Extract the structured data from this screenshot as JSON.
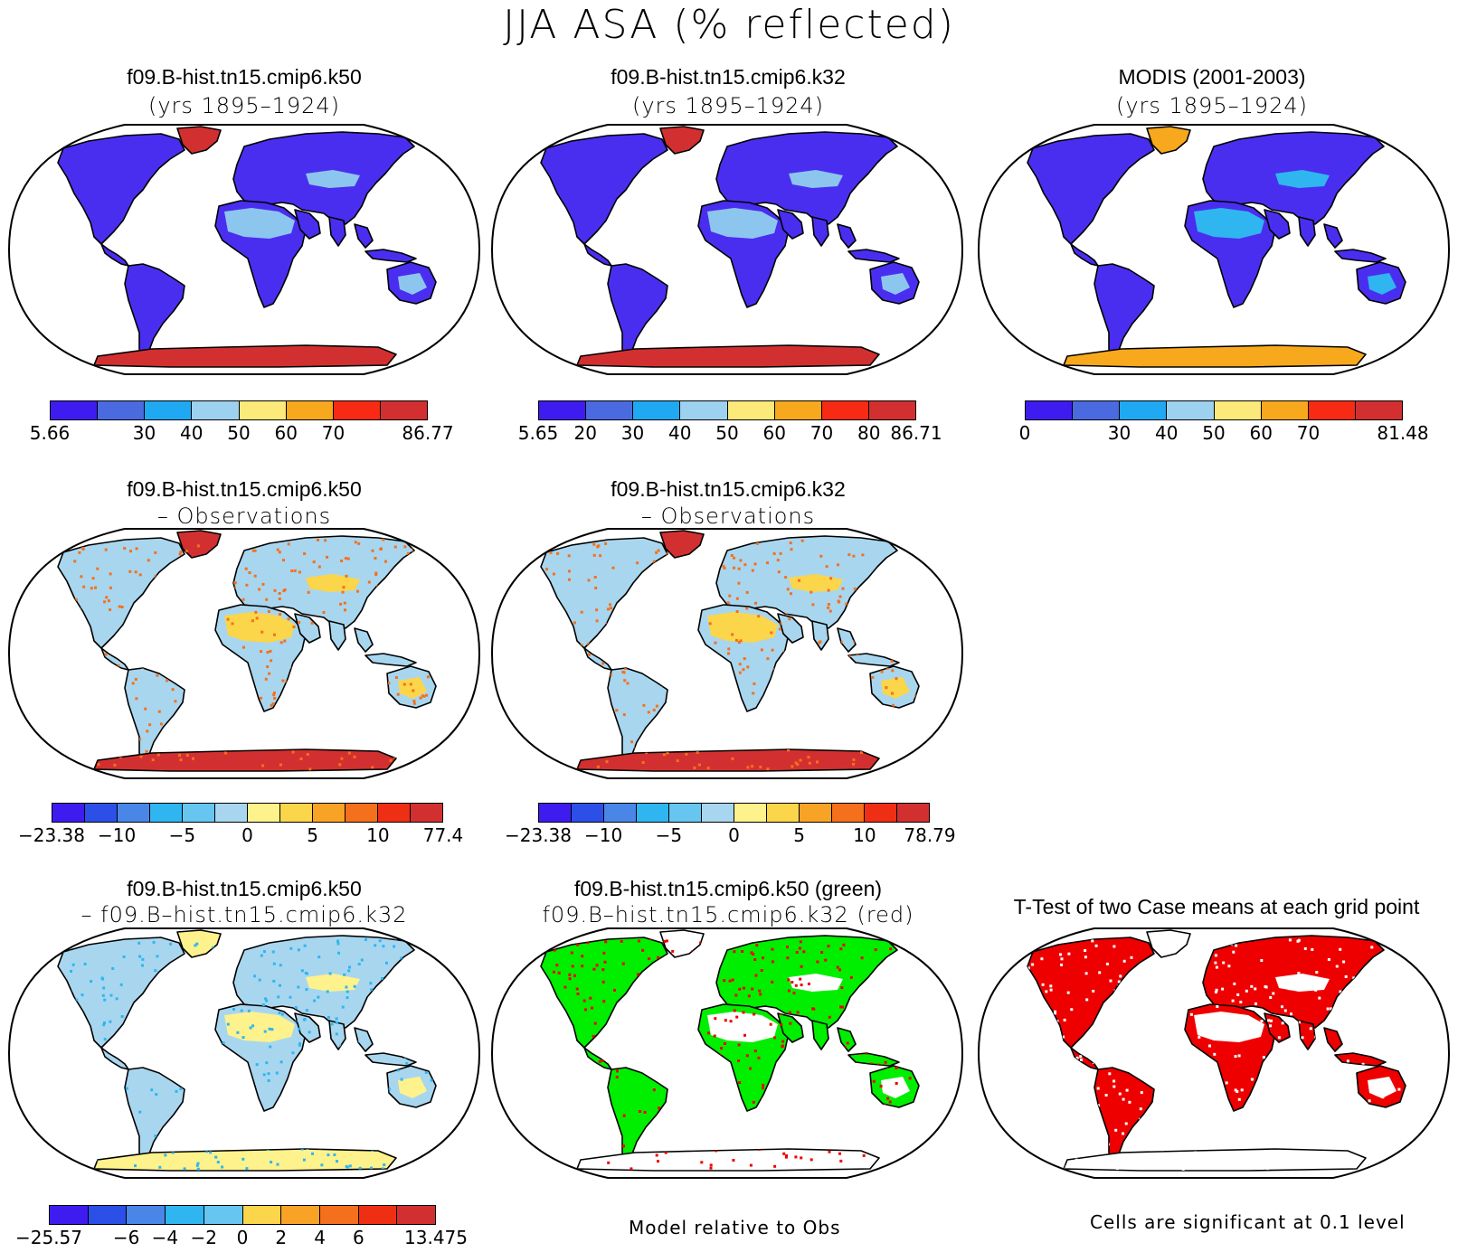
{
  "figure_title": "JJA ASA (% reflected)",
  "colors": {
    "ocean": "#ffffff",
    "coast": "#000000",
    "abs_scale": [
      "#3e1cf0",
      "#4a6be0",
      "#1fa9f2",
      "#9dd1f0",
      "#fbe97a",
      "#f8a81c",
      "#f72a14",
      "#d23030"
    ],
    "diff_scale": [
      "#3e1cf0",
      "#2c4fe8",
      "#4a86e8",
      "#2fb6f0",
      "#66c6f0",
      "#a8d6ef",
      "#fdf28c",
      "#fbd54a",
      "#f9a326",
      "#f5701c",
      "#ef2f14",
      "#d23030"
    ],
    "sig_green": "#00ee00",
    "sig_red": "#ee0000"
  },
  "panels": [
    {
      "id": "k50",
      "title": "f09.B-hist.tn15.cmip6.k50",
      "subtitle": "(yrs 1895–1924)",
      "land_color": "#4a2ef0",
      "ice_color": "#d23030",
      "desert_color": "#8cc6ee",
      "dots": ""
    },
    {
      "id": "k32",
      "title": "f09.B-hist.tn15.cmip6.k32",
      "subtitle": "(yrs 1895–1924)",
      "land_color": "#4a2ef0",
      "ice_color": "#d23030",
      "desert_color": "#8cc6ee",
      "dots": ""
    },
    {
      "id": "modis",
      "title": "MODIS (2001-2003)",
      "subtitle": "(yrs 1895–1924)",
      "land_color": "#4a2ef0",
      "ice_color": "#f8a81c",
      "desert_color": "#2fb6f0",
      "dots": ""
    },
    {
      "id": "k50obs",
      "title": "f09.B-hist.tn15.cmip6.k50",
      "subtitle": "– Observations",
      "land_color": "#a8d6ef",
      "ice_color": "#d23030",
      "desert_color": "#fbd54a",
      "dots": "#f5701c"
    },
    {
      "id": "k32obs",
      "title": "f09.B-hist.tn15.cmip6.k32",
      "subtitle": "– Observations",
      "land_color": "#a8d6ef",
      "ice_color": "#d23030",
      "desert_color": "#fbd54a",
      "dots": "#f5701c"
    },
    {
      "id": "k50k32",
      "title": "f09.B-hist.tn15.cmip6.k50",
      "subtitle": "– f09.B–hist.tn15.cmip6.k32",
      "land_color": "#a8d6ef",
      "ice_color": "#fdf28c",
      "desert_color": "#fdf28c",
      "dots": "#2fb6f0"
    },
    {
      "id": "sigmap",
      "title": "f09.B-hist.tn15.cmip6.k50 (green)",
      "subtitle": "f09.B–hist.tn15.cmip6.k32 (red)",
      "land_color": "#00ee00",
      "ice_color": "#ffffff",
      "desert_color": "#ffffff",
      "dots": "#ee0000"
    },
    {
      "id": "ttest",
      "title": "T-Test of two Case means at each grid point",
      "subtitle": "",
      "land_color": "#ee0000",
      "ice_color": "#ffffff",
      "desert_color": "#ffffff",
      "dots": "#ffffff"
    }
  ],
  "colorbars": [
    {
      "id": "cb-k50",
      "labels": [
        {
          "t": "5.66",
          "i": 0
        },
        {
          "t": "30",
          "i": 2
        },
        {
          "t": "40",
          "i": 3
        },
        {
          "t": "50",
          "i": 4
        },
        {
          "t": "60",
          "i": 5
        },
        {
          "t": "70",
          "i": 6
        },
        {
          "t": "86.77",
          "i": 8
        }
      ],
      "scale": "abs_scale"
    },
    {
      "id": "cb-k32",
      "labels": [
        {
          "t": "5.65",
          "i": 0
        },
        {
          "t": "20",
          "i": 1
        },
        {
          "t": "30",
          "i": 2
        },
        {
          "t": "40",
          "i": 3
        },
        {
          "t": "50",
          "i": 4
        },
        {
          "t": "60",
          "i": 5
        },
        {
          "t": "70",
          "i": 6
        },
        {
          "t": "80",
          "i": 7
        },
        {
          "t": "86.71",
          "i": 8
        }
      ],
      "scale": "abs_scale"
    },
    {
      "id": "cb-modis",
      "labels": [
        {
          "t": "0",
          "i": 0
        },
        {
          "t": "30",
          "i": 2
        },
        {
          "t": "40",
          "i": 3
        },
        {
          "t": "50",
          "i": 4
        },
        {
          "t": "60",
          "i": 5
        },
        {
          "t": "70",
          "i": 6
        },
        {
          "t": "81.48",
          "i": 8
        }
      ],
      "scale": "abs_scale"
    },
    {
      "id": "cb-k50obs",
      "labels": [
        {
          "t": "−23.38",
          "i": 0
        },
        {
          "t": "−10",
          "i": 2
        },
        {
          "t": "−5",
          "i": 4
        },
        {
          "t": "0",
          "i": 6
        },
        {
          "t": "5",
          "i": 8
        },
        {
          "t": "10",
          "i": 10
        },
        {
          "t": "77.4",
          "i": 12
        }
      ],
      "scale": "diff_scale"
    },
    {
      "id": "cb-k32obs",
      "labels": [
        {
          "t": "−23.38",
          "i": 0
        },
        {
          "t": "−10",
          "i": 2
        },
        {
          "t": "−5",
          "i": 4
        },
        {
          "t": "0",
          "i": 6
        },
        {
          "t": "5",
          "i": 8
        },
        {
          "t": "10",
          "i": 10
        },
        {
          "t": "78.79",
          "i": 12
        }
      ],
      "scale": "diff_scale"
    },
    {
      "id": "cb-k50k32",
      "labels": [
        {
          "t": "−25.57",
          "i": 0
        },
        {
          "t": "−6",
          "i": 2
        },
        {
          "t": "−4",
          "i": 3
        },
        {
          "t": "−2",
          "i": 4
        },
        {
          "t": "0",
          "i": 5
        },
        {
          "t": "2",
          "i": 6
        },
        {
          "t": "4",
          "i": 7
        },
        {
          "t": "6",
          "i": 8
        },
        {
          "t": "13.475",
          "i": 10
        }
      ],
      "scale": "diff_scale10"
    }
  ],
  "notes": {
    "model_relative": "Model relative to Obs",
    "significance": "Cells are significant at 0.1 level"
  }
}
